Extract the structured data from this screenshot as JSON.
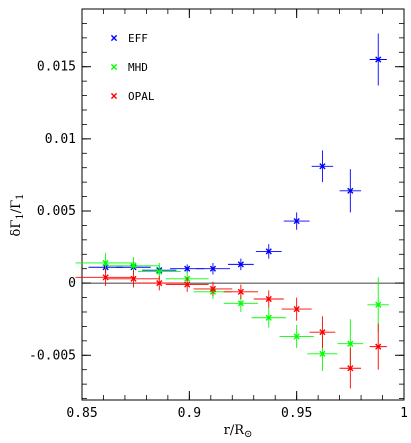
{
  "chart_data": {
    "type": "scatter",
    "xlabel": "r/R",
    "xlabel_sub": "⊙",
    "ylabel": "δΓ",
    "ylabel_sub": "1",
    "ylabel_den": "/Γ",
    "xlim": [
      0.85,
      1.0
    ],
    "ylim": [
      -0.0081,
      0.019
    ],
    "x_ticks": [
      0.85,
      0.9,
      0.95,
      1.0
    ],
    "x_tick_labels": [
      "0.85",
      "0.9",
      "0.95",
      "1"
    ],
    "y_ticks": [
      -0.005,
      0,
      0.005,
      0.01,
      0.015
    ],
    "y_tick_labels": [
      "-0.005",
      "0",
      "0.005",
      "0.01",
      "0.015"
    ],
    "zero_line": true,
    "grid": false,
    "legend_position": "top-left",
    "series": [
      {
        "name": "EFF",
        "color": "#0000ff",
        "points": [
          {
            "x": 0.861,
            "y": 0.0011,
            "xerr": 0.008,
            "yerr": 0.0004
          },
          {
            "x": 0.874,
            "y": 0.0011,
            "xerr": 0.008,
            "yerr": 0.0004
          },
          {
            "x": 0.886,
            "y": 0.0009,
            "xerr": 0.008,
            "yerr": 0.0003
          },
          {
            "x": 0.899,
            "y": 0.001,
            "xerr": 0.008,
            "yerr": 0.0003
          },
          {
            "x": 0.911,
            "y": 0.001,
            "xerr": 0.008,
            "yerr": 0.0004
          },
          {
            "x": 0.924,
            "y": 0.0013,
            "xerr": 0.006,
            "yerr": 0.0004
          },
          {
            "x": 0.937,
            "y": 0.0022,
            "xerr": 0.006,
            "yerr": 0.0005
          },
          {
            "x": 0.95,
            "y": 0.0043,
            "xerr": 0.006,
            "yerr": 0.0006
          },
          {
            "x": 0.962,
            "y": 0.0081,
            "xerr": 0.005,
            "yerr": 0.0011
          },
          {
            "x": 0.975,
            "y": 0.0064,
            "xerr": 0.005,
            "yerr": 0.0015
          },
          {
            "x": 0.988,
            "y": 0.0155,
            "xerr": 0.004,
            "yerr": 0.0018
          }
        ]
      },
      {
        "name": "MHD",
        "color": "#00ff00",
        "points": [
          {
            "x": 0.861,
            "y": 0.0014,
            "xerr": 0.014,
            "yerr": 0.0007
          },
          {
            "x": 0.874,
            "y": 0.0012,
            "xerr": 0.012,
            "yerr": 0.0006
          },
          {
            "x": 0.886,
            "y": 0.0008,
            "xerr": 0.01,
            "yerr": 0.0006
          },
          {
            "x": 0.899,
            "y": 0.0003,
            "xerr": 0.01,
            "yerr": 0.0005
          },
          {
            "x": 0.911,
            "y": -0.0006,
            "xerr": 0.009,
            "yerr": 0.0005
          },
          {
            "x": 0.924,
            "y": -0.0014,
            "xerr": 0.008,
            "yerr": 0.0006
          },
          {
            "x": 0.937,
            "y": -0.0024,
            "xerr": 0.008,
            "yerr": 0.0007
          },
          {
            "x": 0.95,
            "y": -0.0037,
            "xerr": 0.008,
            "yerr": 0.0008
          },
          {
            "x": 0.962,
            "y": -0.0049,
            "xerr": 0.007,
            "yerr": 0.0012
          },
          {
            "x": 0.975,
            "y": -0.0042,
            "xerr": 0.006,
            "yerr": 0.0017
          },
          {
            "x": 0.988,
            "y": -0.0015,
            "xerr": 0.005,
            "yerr": 0.0019
          }
        ]
      },
      {
        "name": "OPAL",
        "color": "#ff0000",
        "points": [
          {
            "x": 0.861,
            "y": 0.0004,
            "xerr": 0.014,
            "yerr": 0.0006
          },
          {
            "x": 0.874,
            "y": 0.0003,
            "xerr": 0.012,
            "yerr": 0.0006
          },
          {
            "x": 0.886,
            "y": 0.0,
            "xerr": 0.011,
            "yerr": 0.0005
          },
          {
            "x": 0.899,
            "y": -0.0001,
            "xerr": 0.01,
            "yerr": 0.0005
          },
          {
            "x": 0.911,
            "y": -0.0004,
            "xerr": 0.009,
            "yerr": 0.0005
          },
          {
            "x": 0.924,
            "y": -0.0006,
            "xerr": 0.008,
            "yerr": 0.0005
          },
          {
            "x": 0.937,
            "y": -0.0011,
            "xerr": 0.007,
            "yerr": 0.0006
          },
          {
            "x": 0.95,
            "y": -0.0018,
            "xerr": 0.007,
            "yerr": 0.0008
          },
          {
            "x": 0.962,
            "y": -0.0034,
            "xerr": 0.006,
            "yerr": 0.0011
          },
          {
            "x": 0.975,
            "y": -0.0059,
            "xerr": 0.005,
            "yerr": 0.0014
          },
          {
            "x": 0.988,
            "y": -0.0044,
            "xerr": 0.004,
            "yerr": 0.0016
          }
        ]
      }
    ]
  }
}
